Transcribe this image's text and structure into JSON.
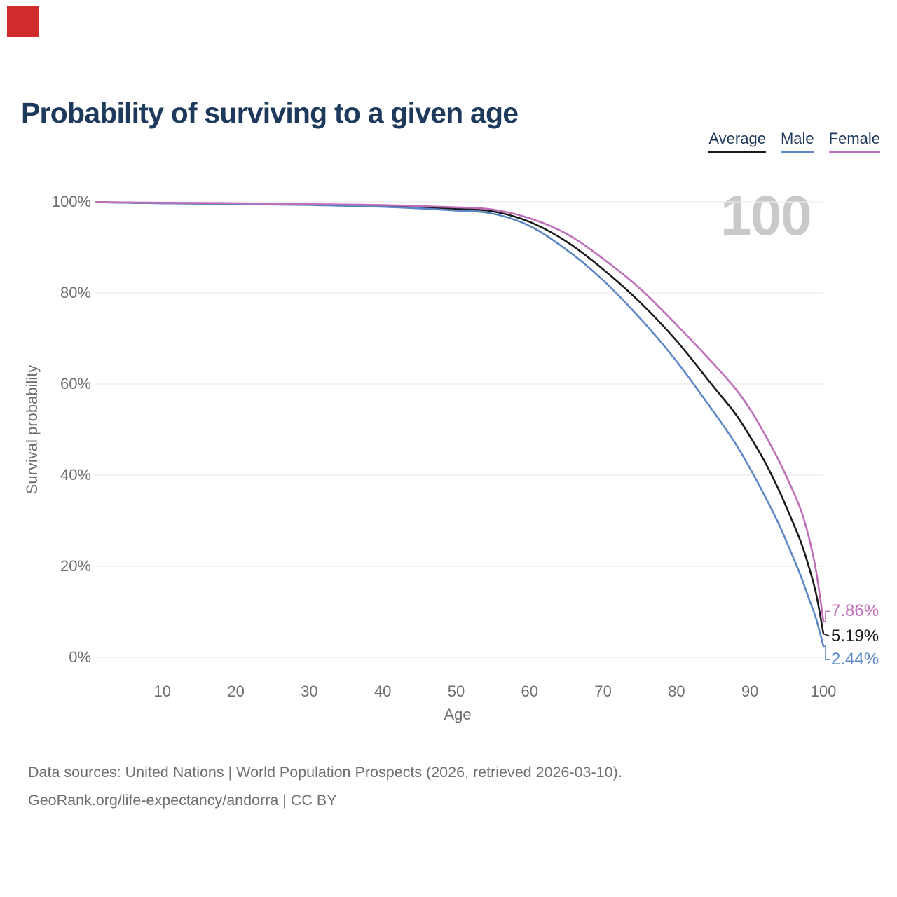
{
  "marker": {
    "color": "#d02c2c"
  },
  "title": "Probability of surviving to a given age",
  "legend": {
    "items": [
      {
        "id": "average",
        "label": "Average",
        "color": "#1b1b1b"
      },
      {
        "id": "male",
        "label": "Male",
        "color": "#5b87c6"
      },
      {
        "id": "female",
        "label": "Female",
        "color": "#bf6eba"
      }
    ]
  },
  "watermark": "100",
  "axes": {
    "y": {
      "title": "Survival probability",
      "ticks": [
        "100%",
        "80%",
        "60%",
        "40%",
        "20%",
        "0%"
      ],
      "tick_values": [
        100,
        80,
        60,
        40,
        20,
        0
      ]
    },
    "x": {
      "title": "Age",
      "ticks": [
        "10",
        "20",
        "30",
        "40",
        "50",
        "60",
        "70",
        "80",
        "90",
        "100"
      ],
      "tick_values": [
        10,
        20,
        30,
        40,
        50,
        60,
        70,
        80,
        90,
        100
      ]
    }
  },
  "footer": {
    "line1": "Data sources: United Nations | World Population Prospects (2026, retrieved 2026-03-10).",
    "line2": "GeoRank.org/life-expectancy/andorra | CC BY"
  },
  "chart_data": {
    "type": "line",
    "title": "Probability of surviving to a given age",
    "xlabel": "Age",
    "ylabel": "Survival probability",
    "x_range": [
      0,
      100
    ],
    "y_range": [
      0,
      100
    ],
    "grid": "horizontal",
    "legend_position": "top-right",
    "series": [
      {
        "name": "Average",
        "color": "#1b1b1b",
        "end_label": "5.19%",
        "end_connector": "straight",
        "points": [
          [
            1,
            99.95
          ],
          [
            10,
            99.7
          ],
          [
            20,
            99.6
          ],
          [
            30,
            99.4
          ],
          [
            40,
            99.1
          ],
          [
            50,
            98.5
          ],
          [
            55,
            97.9
          ],
          [
            60,
            95.6
          ],
          [
            65,
            91.3
          ],
          [
            70,
            85.2
          ],
          [
            75,
            78.0
          ],
          [
            80,
            69.5
          ],
          [
            85,
            59.5
          ],
          [
            88,
            53.5
          ],
          [
            90,
            48.5
          ],
          [
            92,
            43.0
          ],
          [
            94,
            36.5
          ],
          [
            96,
            29.0
          ],
          [
            97,
            25.0
          ],
          [
            98,
            20.0
          ],
          [
            99,
            14.0
          ],
          [
            100,
            5.19
          ]
        ]
      },
      {
        "name": "Male",
        "color": "#5b87c6",
        "end_label": "2.44%",
        "end_connector": "down",
        "points": [
          [
            1,
            99.9
          ],
          [
            10,
            99.7
          ],
          [
            20,
            99.5
          ],
          [
            30,
            99.3
          ],
          [
            40,
            98.9
          ],
          [
            50,
            98.1
          ],
          [
            55,
            97.4
          ],
          [
            60,
            94.7
          ],
          [
            65,
            89.5
          ],
          [
            70,
            82.8
          ],
          [
            75,
            74.5
          ],
          [
            80,
            65.0
          ],
          [
            85,
            54.0
          ],
          [
            88,
            47.0
          ],
          [
            90,
            41.5
          ],
          [
            92,
            35.5
          ],
          [
            94,
            29.0
          ],
          [
            96,
            21.5
          ],
          [
            97,
            17.5
          ],
          [
            98,
            13.0
          ],
          [
            99,
            8.5
          ],
          [
            100,
            2.44
          ]
        ]
      },
      {
        "name": "Female",
        "color": "#bf6eba",
        "end_label": "7.86%",
        "end_connector": "up",
        "points": [
          [
            1,
            99.95
          ],
          [
            10,
            99.8
          ],
          [
            20,
            99.7
          ],
          [
            30,
            99.5
          ],
          [
            40,
            99.3
          ],
          [
            50,
            98.8
          ],
          [
            55,
            98.3
          ],
          [
            60,
            96.4
          ],
          [
            65,
            93.0
          ],
          [
            70,
            87.5
          ],
          [
            75,
            81.0
          ],
          [
            80,
            73.0
          ],
          [
            85,
            64.5
          ],
          [
            88,
            59.0
          ],
          [
            90,
            54.5
          ],
          [
            92,
            49.0
          ],
          [
            94,
            43.0
          ],
          [
            96,
            36.0
          ],
          [
            97,
            32.0
          ],
          [
            98,
            26.5
          ],
          [
            99,
            19.0
          ],
          [
            100,
            7.86
          ]
        ]
      }
    ]
  }
}
